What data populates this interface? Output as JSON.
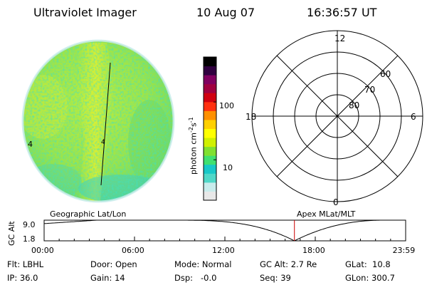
{
  "header": {
    "title": "Ultraviolet Imager",
    "date": "10 Aug 07",
    "time": "16:36:57 UT"
  },
  "image_panel": {
    "left_marker": "4",
    "marker_center": "4"
  },
  "colorbar": {
    "label": "photon cm",
    "label_exp1": "-2",
    "label_mid": "s",
    "label_exp2": "-1",
    "tick_labels": [
      "100",
      "10"
    ],
    "tick_values": [
      100,
      10
    ],
    "range": [
      2,
      600
    ],
    "colors": [
      "#e8e8e8",
      "#c8ecec",
      "#50d8c8",
      "#18c8c8",
      "#40e070",
      "#80e030",
      "#d0f000",
      "#ffff00",
      "#ffd000",
      "#ff9000",
      "#ff3010",
      "#d00010",
      "#a00040",
      "#800060",
      "#300040",
      "#000000"
    ]
  },
  "polar_plot": {
    "mlt_labels": [
      "12",
      "18",
      "6",
      "0"
    ],
    "lat_labels": [
      "60",
      "70",
      "80"
    ],
    "lat_values": [
      60,
      70,
      80
    ]
  },
  "timeline": {
    "left_title": "Geographic Lat/Lon",
    "right_title": "Apex MLat/MLT",
    "axis_label": "GC Alt",
    "y_max_label": "9.0",
    "y_min_label": "1.8",
    "y_range": [
      1.8,
      9.0
    ],
    "x_range_hours": [
      0,
      24
    ],
    "x_tick_labels": [
      "00:00",
      "06:00",
      "12:00",
      "18:00",
      "23:59"
    ],
    "x_tick_hours": [
      0,
      6,
      12,
      18,
      23.98
    ],
    "current_time_hours": 16.616,
    "marker_color": "#cc0000"
  },
  "info": {
    "filter": "Flt: LBHL",
    "ip": "IP: 36.0",
    "door": "Door: Open",
    "gain": "Gain: 14",
    "mode": "Mode: Normal",
    "dsp": "Dsp:   -0.0",
    "gc_alt": "GC Alt: 2.7 Re",
    "seq": "Seq: 39",
    "glat": "GLat:  10.8",
    "glon": "GLon: 300.7"
  }
}
